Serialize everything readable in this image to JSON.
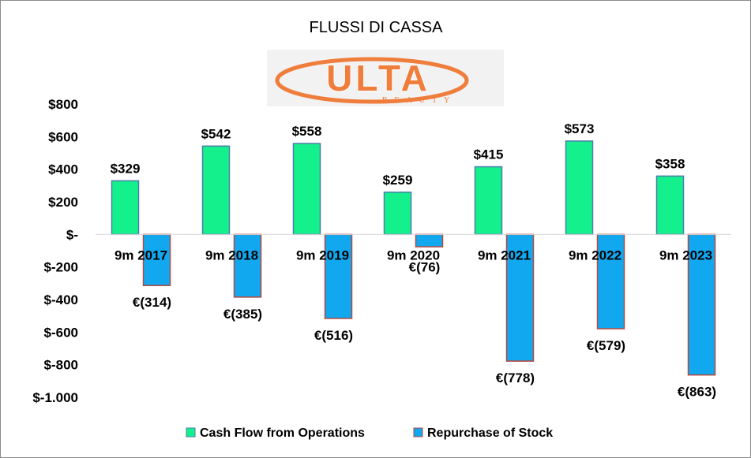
{
  "chart_data": {
    "type": "bar",
    "title": "FLUSSI DI CASSA",
    "logo": {
      "text": "ULTA",
      "subtext": "BEAUTY",
      "color": "#ef7d3c"
    },
    "categories": [
      "9m 2017",
      "9m 2018",
      "9m 2019",
      "9m 2020",
      "9m 2021",
      "9m 2022",
      "9m 2023"
    ],
    "series": [
      {
        "name": "Cash Flow from Operations",
        "values": [
          329,
          542,
          558,
          259,
          415,
          573,
          358
        ],
        "labels": [
          "$329",
          "$542",
          "$558",
          "$259",
          "$415",
          "$573",
          "$358"
        ],
        "color": "#14f08c",
        "border": "#4a7ea8"
      },
      {
        "name": "Repurchase of Stock",
        "values": [
          -314,
          -385,
          -516,
          -76,
          -778,
          -579,
          -863
        ],
        "labels": [
          "€(314)",
          "€(385)",
          "€(516)",
          "€(76)",
          "€(778)",
          "€(579)",
          "€(863)"
        ],
        "color": "#11a8f0",
        "border": "#b5483c"
      }
    ],
    "y_ticks": [
      {
        "value": 800,
        "label": "$800"
      },
      {
        "value": 600,
        "label": "$600"
      },
      {
        "value": 400,
        "label": "$400"
      },
      {
        "value": 200,
        "label": "$200"
      },
      {
        "value": 0,
        "label": "$-"
      },
      {
        "value": -200,
        "label": "$-200"
      },
      {
        "value": -400,
        "label": "$-400"
      },
      {
        "value": -600,
        "label": "$-600"
      },
      {
        "value": -800,
        "label": "$-800"
      },
      {
        "value": -1000,
        "label": "$-1.000"
      }
    ],
    "ylim": [
      -1000,
      800
    ],
    "grid": false,
    "legend_position": "bottom",
    "xlabel": "",
    "ylabel": ""
  }
}
